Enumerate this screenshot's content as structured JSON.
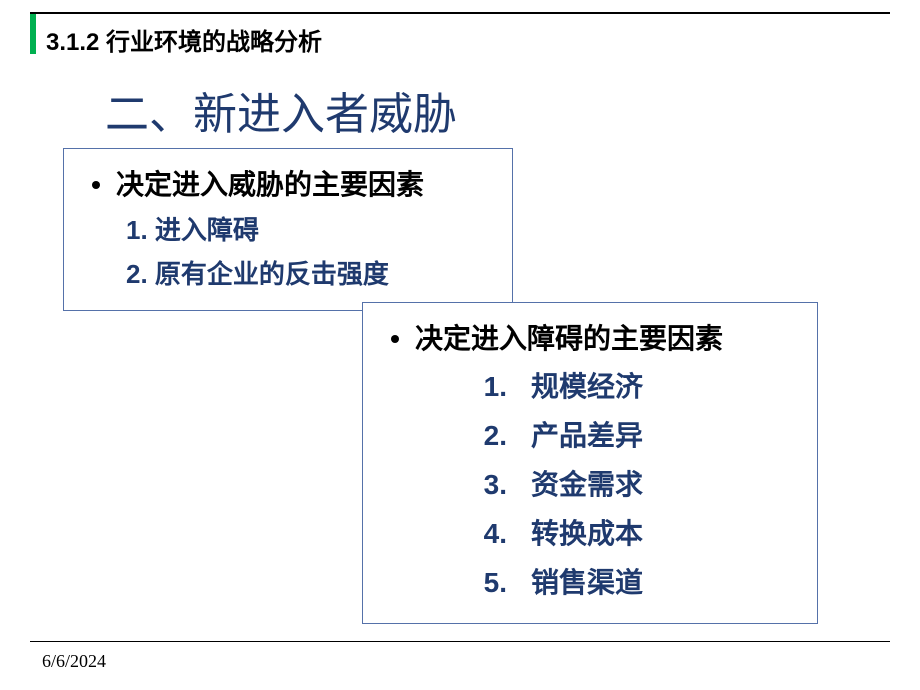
{
  "colors": {
    "accent": "#00b050",
    "title": "#1f3a6e",
    "sub_text": "#1f3a6e",
    "box_border": "#5571a9",
    "text": "#000000",
    "background": "#ffffff"
  },
  "typography": {
    "title_fontsize": 44,
    "section_fontsize": 24,
    "bullet_fontsize": 28,
    "sub_fontsize": 26,
    "sub2_fontsize": 28,
    "date_fontsize": 18
  },
  "section_number": "3.1.2 行业环境的战略分析",
  "title": "二、新进入者威胁",
  "box1": {
    "heading": "决定进入威胁的主要因素",
    "items": [
      {
        "num": "1.",
        "text": "进入障碍"
      },
      {
        "num": "2.",
        "text": "原有企业的反击强度"
      }
    ]
  },
  "box2": {
    "heading": "决定进入障碍的主要因素",
    "items": [
      {
        "num": "1.",
        "text": "规模经济"
      },
      {
        "num": "2.",
        "text": "产品差异"
      },
      {
        "num": "3.",
        "text": "资金需求"
      },
      {
        "num": "4.",
        "text": "转换成本"
      },
      {
        "num": "5.",
        "text": "销售渠道"
      }
    ]
  },
  "date": "6/6/2024"
}
